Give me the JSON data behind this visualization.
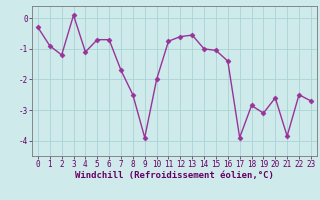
{
  "x": [
    0,
    1,
    2,
    3,
    4,
    5,
    6,
    7,
    8,
    9,
    10,
    11,
    12,
    13,
    14,
    15,
    16,
    17,
    18,
    19,
    20,
    21,
    22,
    23
  ],
  "y": [
    -0.3,
    -0.9,
    -1.2,
    0.1,
    -1.1,
    -0.7,
    -0.7,
    -1.7,
    -2.5,
    -3.9,
    -2.0,
    -0.75,
    -0.6,
    -0.55,
    -1.0,
    -1.05,
    -1.4,
    -3.9,
    -2.85,
    -3.1,
    -2.6,
    -3.85,
    -2.5,
    -2.7
  ],
  "line_color": "#993399",
  "marker": "D",
  "markersize": 2.5,
  "linewidth": 1.0,
  "bg_color": "#ceeaea",
  "grid_color": "#aad4d4",
  "xlabel": "Windchill (Refroidissement éolien,°C)",
  "xlabel_fontsize": 6.5,
  "tick_fontsize": 5.5,
  "ylim": [
    -4.5,
    0.4
  ],
  "yticks": [
    0,
    -1,
    -2,
    -3,
    -4
  ],
  "xlim": [
    -0.5,
    23.5
  ],
  "xticks": [
    0,
    1,
    2,
    3,
    4,
    5,
    6,
    7,
    8,
    9,
    10,
    11,
    12,
    13,
    14,
    15,
    16,
    17,
    18,
    19,
    20,
    21,
    22,
    23
  ]
}
